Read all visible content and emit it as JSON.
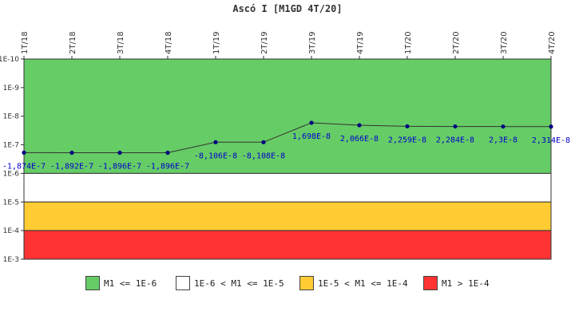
{
  "chart_data": {
    "type": "line",
    "title": "Ascó I [M1GD 4T/20]",
    "categories": [
      "1T/18",
      "2T/18",
      "3T/18",
      "4T/18",
      "1T/19",
      "2T/19",
      "3T/19",
      "4T/19",
      "1T/20",
      "2T/20",
      "3T/20",
      "4T/20"
    ],
    "y_scale": "log",
    "y_axis_inverted": true,
    "y_range": [
      1e-10,
      0.001
    ],
    "y_tick_labels": [
      "1E-10",
      "1E-9",
      "1E-8",
      "1E-7",
      "1E-6",
      "1E-5",
      "1E-4",
      "1E-3"
    ],
    "grid": false,
    "series": [
      {
        "values": [
          1.874e-07,
          1.892e-07,
          1.896e-07,
          1.896e-07,
          8.106e-08,
          8.108e-08,
          1.698e-08,
          2.066e-08,
          2.259e-08,
          2.284e-08,
          2.3e-08,
          2.314e-08
        ],
        "data_labels": [
          "-1,874E-7",
          "-1,892E-7",
          "-1,896E-7",
          "-1,896E-7",
          "-8,106E-8",
          "-8,108E-8",
          "1,698E-8",
          "2,066E-8",
          "2,259E-8",
          "2,284E-8",
          "2,3E-8",
          "2,314E-8"
        ],
        "color": "#000080"
      }
    ],
    "bands": [
      {
        "from": 1e-10,
        "to": 1e-06,
        "color": "#66cc66",
        "label": "M1 <= 1E-6"
      },
      {
        "from": 1e-06,
        "to": 1e-05,
        "color": "#ffffff",
        "label": "1E-6 < M1 <= 1E-5"
      },
      {
        "from": 1e-05,
        "to": 0.0001,
        "color": "#ffcc33",
        "label": "1E-5 < M1 <= 1E-4"
      },
      {
        "from": 0.0001,
        "to": 0.001,
        "color": "#ff3333",
        "label": "M1 > 1E-4"
      }
    ],
    "legend_position": "bottom"
  }
}
